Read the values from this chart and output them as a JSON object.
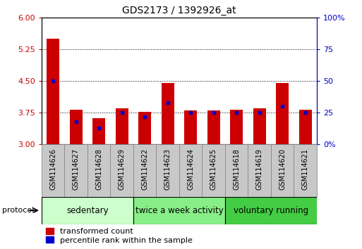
{
  "title": "GDS2173 / 1392926_at",
  "samples": [
    "GSM114626",
    "GSM114627",
    "GSM114628",
    "GSM114629",
    "GSM114622",
    "GSM114623",
    "GSM114624",
    "GSM114625",
    "GSM114618",
    "GSM114619",
    "GSM114620",
    "GSM114621"
  ],
  "red_values": [
    5.5,
    3.82,
    3.62,
    3.85,
    3.77,
    4.45,
    3.8,
    3.8,
    3.82,
    3.85,
    4.45,
    3.82
  ],
  "blue_values": [
    50,
    18,
    13,
    25,
    22,
    33,
    25,
    25,
    25,
    25,
    30,
    25
  ],
  "y_min": 3.0,
  "y_max": 6.0,
  "y_ticks": [
    3.0,
    3.75,
    4.5,
    5.25,
    6.0
  ],
  "y_right_ticks": [
    0,
    25,
    50,
    75,
    100
  ],
  "groups": [
    {
      "label": "sedentary",
      "start": 0,
      "end": 4,
      "color": "#ccffcc"
    },
    {
      "label": "twice a week activity",
      "start": 4,
      "end": 8,
      "color": "#88ee88"
    },
    {
      "label": "voluntary running",
      "start": 8,
      "end": 12,
      "color": "#44cc44"
    }
  ],
  "bar_color": "#cc0000",
  "dot_color": "#0000cc",
  "bar_width": 0.55,
  "tick_label_fontsize": 7,
  "group_label_fontsize": 8.5,
  "legend_fontsize": 8,
  "title_fontsize": 10,
  "protocol_label": "protocol",
  "left_axis_color": "#cc0000",
  "right_axis_color": "#0000cc",
  "tickbox_color": "#c8c8c8",
  "tickbox_edge": "#888888"
}
